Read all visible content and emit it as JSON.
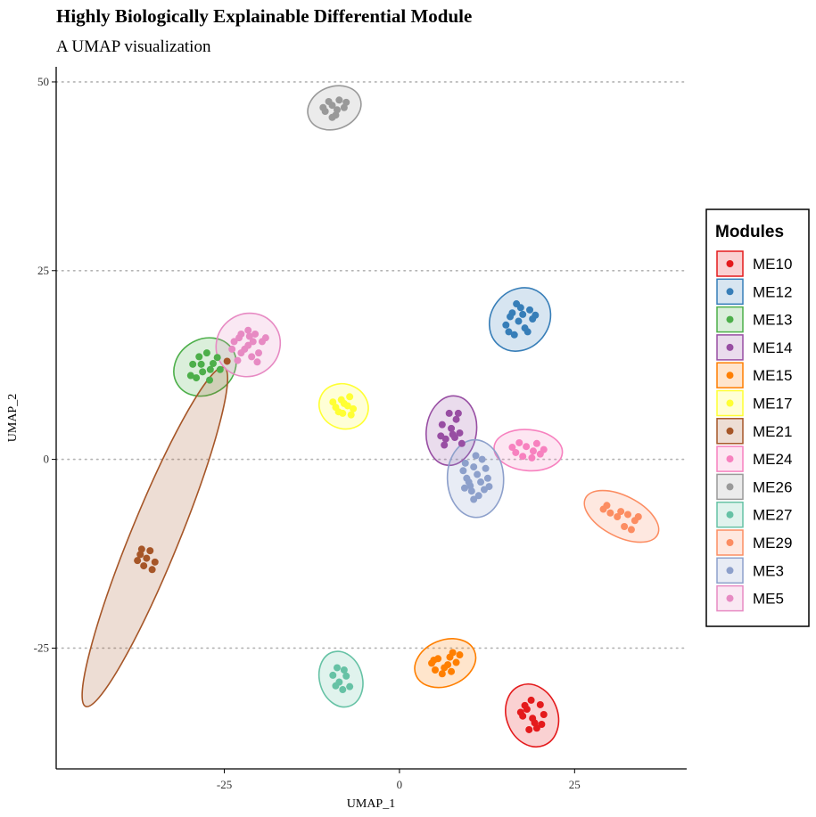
{
  "chart_data": {
    "type": "scatter",
    "title": "Highly Biologically Explainable Differential Module",
    "subtitle": "A UMAP visualization",
    "xlabel": "UMAP_1",
    "ylabel": "UMAP_2",
    "xlim": [
      -49,
      41
    ],
    "ylim": [
      -41,
      52
    ],
    "xticks": [
      -25,
      0,
      25
    ],
    "yticks": [
      -25,
      0,
      25,
      50
    ],
    "grid": "horizontal dotted",
    "legend": {
      "title": "Modules",
      "position": "right"
    },
    "series": [
      {
        "name": "ME10",
        "color": "#E41A1C",
        "points": [
          [
            18.2,
            -33.1
          ],
          [
            19.0,
            -34.3
          ],
          [
            20.1,
            -32.5
          ],
          [
            17.6,
            -34.0
          ],
          [
            19.6,
            -35.6
          ],
          [
            18.8,
            -31.9
          ],
          [
            20.6,
            -33.8
          ],
          [
            17.9,
            -32.6
          ],
          [
            19.3,
            -34.9
          ],
          [
            20.3,
            -35.1
          ],
          [
            18.5,
            -35.8
          ],
          [
            17.3,
            -33.5
          ]
        ]
      },
      {
        "name": "ME12",
        "color": "#377EB8",
        "points": [
          [
            15.2,
            17.8
          ],
          [
            16.1,
            19.4
          ],
          [
            17.3,
            20.1
          ],
          [
            18.6,
            19.8
          ],
          [
            16.4,
            16.5
          ],
          [
            17.9,
            17.4
          ],
          [
            19.0,
            18.6
          ],
          [
            15.8,
            18.9
          ],
          [
            17.0,
            18.3
          ],
          [
            18.3,
            16.9
          ],
          [
            16.7,
            20.6
          ],
          [
            19.4,
            19.1
          ],
          [
            15.6,
            16.9
          ],
          [
            17.6,
            19.2
          ]
        ]
      },
      {
        "name": "ME13",
        "color": "#4DAF4A",
        "points": [
          [
            -29.5,
            12.6
          ],
          [
            -28.6,
            13.6
          ],
          [
            -27.5,
            14.1
          ],
          [
            -26.6,
            12.7
          ],
          [
            -28.1,
            11.6
          ],
          [
            -29.0,
            10.8
          ],
          [
            -27.1,
            10.5
          ],
          [
            -25.6,
            11.9
          ],
          [
            -29.8,
            11.1
          ],
          [
            -26.0,
            13.5
          ],
          [
            -28.3,
            12.6
          ],
          [
            -27.0,
            11.9
          ]
        ]
      },
      {
        "name": "ME14",
        "color": "#984EA3",
        "points": [
          [
            6.6,
            2.7
          ],
          [
            7.4,
            4.1
          ],
          [
            8.1,
            5.3
          ],
          [
            8.6,
            3.5
          ],
          [
            6.1,
            4.6
          ],
          [
            7.1,
            6.1
          ],
          [
            8.9,
            2.1
          ],
          [
            7.9,
            2.9
          ],
          [
            6.4,
            1.9
          ],
          [
            8.4,
            6.1
          ],
          [
            7.6,
            3.3
          ],
          [
            5.9,
            3.1
          ]
        ]
      },
      {
        "name": "ME15",
        "color": "#FF7F00",
        "points": [
          [
            4.6,
            -27.0
          ],
          [
            5.5,
            -26.4
          ],
          [
            6.4,
            -27.6
          ],
          [
            7.2,
            -26.2
          ],
          [
            8.1,
            -26.9
          ],
          [
            6.1,
            -28.4
          ],
          [
            7.6,
            -25.6
          ],
          [
            5.1,
            -27.9
          ],
          [
            8.6,
            -25.9
          ],
          [
            6.9,
            -27.2
          ],
          [
            4.9,
            -26.6
          ],
          [
            7.4,
            -28.1
          ]
        ]
      },
      {
        "name": "ME17",
        "color": "#FFFF33",
        "points": [
          [
            -9.1,
            6.9
          ],
          [
            -8.3,
            7.9
          ],
          [
            -7.4,
            7.1
          ],
          [
            -6.6,
            6.7
          ],
          [
            -8.1,
            6.1
          ],
          [
            -7.1,
            8.3
          ],
          [
            -9.5,
            7.6
          ],
          [
            -7.9,
            7.4
          ],
          [
            -6.9,
            5.9
          ],
          [
            -8.7,
            6.3
          ]
        ]
      },
      {
        "name": "ME21",
        "color": "#A65628",
        "points": [
          [
            -37.0,
            -12.6
          ],
          [
            -36.1,
            -13.1
          ],
          [
            -35.6,
            -12.1
          ],
          [
            -34.9,
            -13.6
          ],
          [
            -36.5,
            -14.1
          ],
          [
            -37.4,
            -13.4
          ],
          [
            -35.3,
            -14.6
          ],
          [
            -36.8,
            -11.9
          ],
          [
            -24.6,
            13.0
          ]
        ]
      },
      {
        "name": "ME24",
        "color": "#F781BF",
        "points": [
          [
            16.1,
            1.6
          ],
          [
            17.1,
            2.2
          ],
          [
            18.1,
            1.7
          ],
          [
            19.1,
            1.1
          ],
          [
            20.1,
            0.7
          ],
          [
            17.6,
            0.4
          ],
          [
            18.9,
            0.2
          ],
          [
            16.6,
            0.9
          ],
          [
            20.6,
            1.3
          ],
          [
            19.6,
            2.1
          ]
        ]
      },
      {
        "name": "ME26",
        "color": "#999999",
        "points": [
          [
            -10.6,
            46.1
          ],
          [
            -9.6,
            46.9
          ],
          [
            -8.6,
            47.6
          ],
          [
            -7.9,
            46.6
          ],
          [
            -9.1,
            45.6
          ],
          [
            -10.1,
            47.4
          ],
          [
            -7.6,
            47.3
          ],
          [
            -8.9,
            46.3
          ],
          [
            -9.6,
            45.3
          ],
          [
            -10.9,
            46.6
          ]
        ]
      },
      {
        "name": "ME27",
        "color": "#66C2A5",
        "points": [
          [
            -9.5,
            -28.6
          ],
          [
            -8.6,
            -29.5
          ],
          [
            -7.6,
            -28.7
          ],
          [
            -7.1,
            -30.1
          ],
          [
            -8.1,
            -30.5
          ],
          [
            -9.1,
            -30.0
          ],
          [
            -7.9,
            -27.9
          ],
          [
            -8.9,
            -27.6
          ]
        ]
      },
      {
        "name": "ME29",
        "color": "#FC8D62",
        "points": [
          [
            29.1,
            -6.6
          ],
          [
            30.1,
            -7.1
          ],
          [
            31.1,
            -7.6
          ],
          [
            32.6,
            -7.3
          ],
          [
            33.6,
            -8.1
          ],
          [
            34.1,
            -7.6
          ],
          [
            32.1,
            -8.9
          ],
          [
            33.1,
            -9.3
          ],
          [
            29.6,
            -6.1
          ],
          [
            31.6,
            -6.9
          ]
        ]
      },
      {
        "name": "ME3",
        "color": "#8DA0CB",
        "points": [
          [
            9.1,
            -1.5
          ],
          [
            9.6,
            -2.5
          ],
          [
            10.1,
            -3.5
          ],
          [
            10.6,
            -1.0
          ],
          [
            11.1,
            -2.0
          ],
          [
            11.6,
            -3.0
          ],
          [
            12.1,
            -4.0
          ],
          [
            9.4,
            -0.5
          ],
          [
            10.9,
            0.5
          ],
          [
            12.6,
            -2.5
          ],
          [
            11.3,
            -4.8
          ],
          [
            10.3,
            -4.2
          ],
          [
            9.9,
            -3.0
          ],
          [
            12.3,
            -1.2
          ],
          [
            11.8,
            0.0
          ],
          [
            10.6,
            -5.3
          ],
          [
            9.3,
            -3.8
          ],
          [
            12.8,
            -3.6
          ]
        ]
      },
      {
        "name": "ME5",
        "color": "#E78AC3",
        "points": [
          [
            -23.6,
            15.6
          ],
          [
            -22.6,
            16.6
          ],
          [
            -21.6,
            17.1
          ],
          [
            -20.6,
            16.6
          ],
          [
            -19.6,
            15.6
          ],
          [
            -22.1,
            14.6
          ],
          [
            -21.1,
            13.6
          ],
          [
            -20.1,
            14.1
          ],
          [
            -23.1,
            13.1
          ],
          [
            -22.6,
            14.1
          ],
          [
            -19.1,
            16.1
          ],
          [
            -21.6,
            15.1
          ],
          [
            -20.9,
            15.6
          ],
          [
            -22.9,
            16.1
          ],
          [
            -20.3,
            12.9
          ],
          [
            -23.9,
            14.6
          ],
          [
            -21.4,
            16.3
          ]
        ]
      }
    ]
  }
}
